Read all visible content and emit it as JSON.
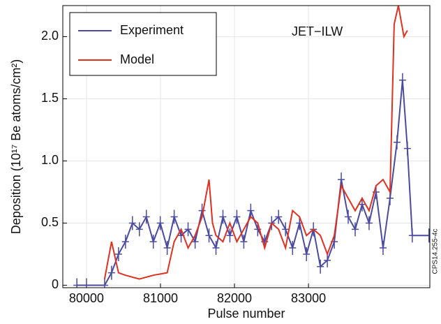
{
  "chart_data": {
    "type": "line",
    "xlabel": "Pulse number",
    "ylabel": "Deposition (10¹⁷ Be atoms/cm²)",
    "annotations": [
      "JET−ILW",
      "CPS14.255-4c"
    ],
    "xlim": [
      79680,
      84640
    ],
    "ylim": [
      -0.02,
      2.25
    ],
    "xticks": [
      80000,
      81000,
      82000,
      83000
    ],
    "yticks": [
      0,
      0.5,
      {
        "value": 1.0,
        "label": "1.0"
      },
      1.5,
      {
        "value": 2.0,
        "label": "2.0"
      }
    ],
    "grid": true,
    "legend": "upper left",
    "series": [
      {
        "name": "Experiment",
        "color": "#4a4aa0",
        "markers": "+",
        "x": [
          79870,
          80000,
          80245,
          80339,
          80433,
          80527,
          80621,
          80715,
          80809,
          80903,
          80997,
          81091,
          81185,
          81279,
          81373,
          81468,
          81562,
          81656,
          81750,
          81844,
          81938,
          82032,
          82126,
          82220,
          82314,
          82408,
          82502,
          82596,
          82690,
          82785,
          82879,
          82973,
          83067,
          83161,
          83255,
          83349,
          83443,
          83537,
          83631,
          83725,
          83819,
          83913,
          84008,
          84102,
          84196,
          84271,
          84337,
          84403,
          84628
        ],
        "values": [
          0,
          0,
          0,
          0.1,
          0.25,
          0.35,
          0.5,
          0.45,
          0.55,
          0.35,
          0.5,
          0.3,
          0.55,
          0.4,
          0.45,
          0.35,
          0.6,
          0.4,
          0.3,
          0.55,
          0.4,
          0.55,
          0.35,
          0.6,
          0.45,
          0.35,
          0.5,
          0.55,
          0.45,
          0.3,
          0.5,
          0.25,
          0.45,
          0.15,
          0.2,
          0.35,
          0.85,
          0.55,
          0.45,
          0.65,
          0.5,
          0.75,
          0.3,
          0.7,
          1.15,
          1.65,
          1.1,
          0.4,
          0.4
        ]
      },
      {
        "name": "Model",
        "color": "#e03020",
        "x": [
          80245,
          80339,
          80433,
          80527,
          80715,
          80903,
          81091,
          81185,
          81279,
          81373,
          81468,
          81562,
          81656,
          81703,
          81750,
          81844,
          81938,
          82032,
          82126,
          82220,
          82314,
          82408,
          82502,
          82596,
          82690,
          82785,
          82879,
          82973,
          83067,
          83161,
          83255,
          83349,
          83443,
          83537,
          83631,
          83725,
          83819,
          83913,
          84008,
          84102,
          84158,
          84215,
          84290,
          84337
        ],
        "values": [
          0.05,
          0.35,
          0.1,
          0.08,
          0.05,
          0.08,
          0.1,
          0.35,
          0.45,
          0.3,
          0.4,
          0.55,
          0.85,
          0.5,
          0.4,
          0.35,
          0.5,
          0.35,
          0.45,
          0.55,
          0.5,
          0.3,
          0.5,
          0.45,
          0.3,
          0.6,
          0.55,
          0.4,
          0.45,
          0.4,
          0.25,
          0.4,
          0.8,
          0.7,
          0.6,
          0.7,
          0.6,
          0.8,
          0.85,
          0.75,
          2.1,
          2.25,
          2.0,
          2.05
        ]
      }
    ]
  }
}
